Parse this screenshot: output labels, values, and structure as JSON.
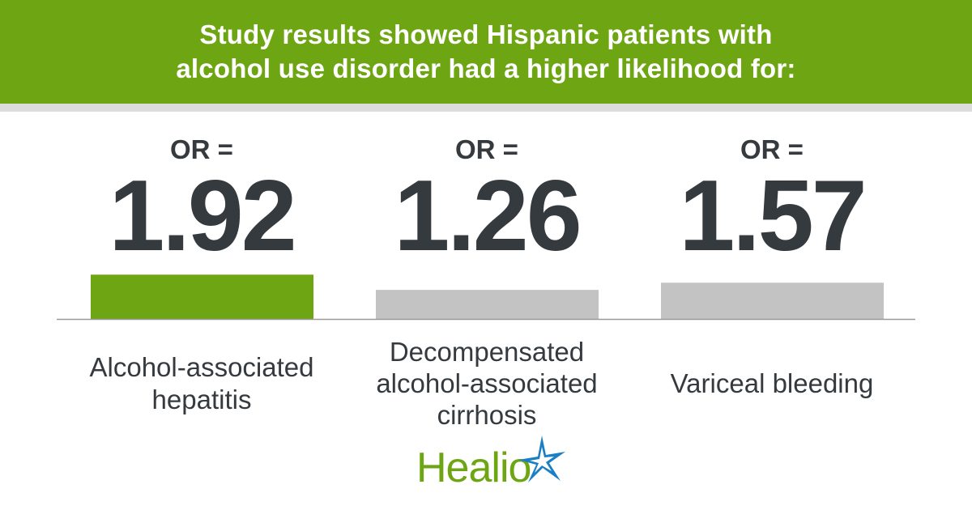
{
  "header": {
    "line1": "Study results showed Hispanic patients with",
    "line2": "alcohol use disorder had a higher likelihood for:"
  },
  "chart_data": {
    "type": "bar",
    "categories": [
      [
        "Alcohol-associated",
        "hepatitis"
      ],
      [
        "Decompensated",
        "alcohol-associated",
        "cirrhosis"
      ],
      [
        "Variceal bleeding"
      ]
    ],
    "prefix": "OR =",
    "values": [
      1.92,
      1.26,
      1.57
    ],
    "value_labels": [
      "1.92",
      "1.26",
      "1.57"
    ],
    "ylim": [
      0,
      2.1
    ],
    "highlight_index": 0,
    "colors": {
      "highlight": "#6ea512",
      "default": "#c3c3c3",
      "baseline": "#9a9a9a"
    }
  },
  "logo": {
    "text": "Healio",
    "mark": "star-burst-icon"
  },
  "colors": {
    "brand_green": "#6ea512",
    "text_dark": "#353a3f",
    "star_blue": "#1b7fc4"
  }
}
